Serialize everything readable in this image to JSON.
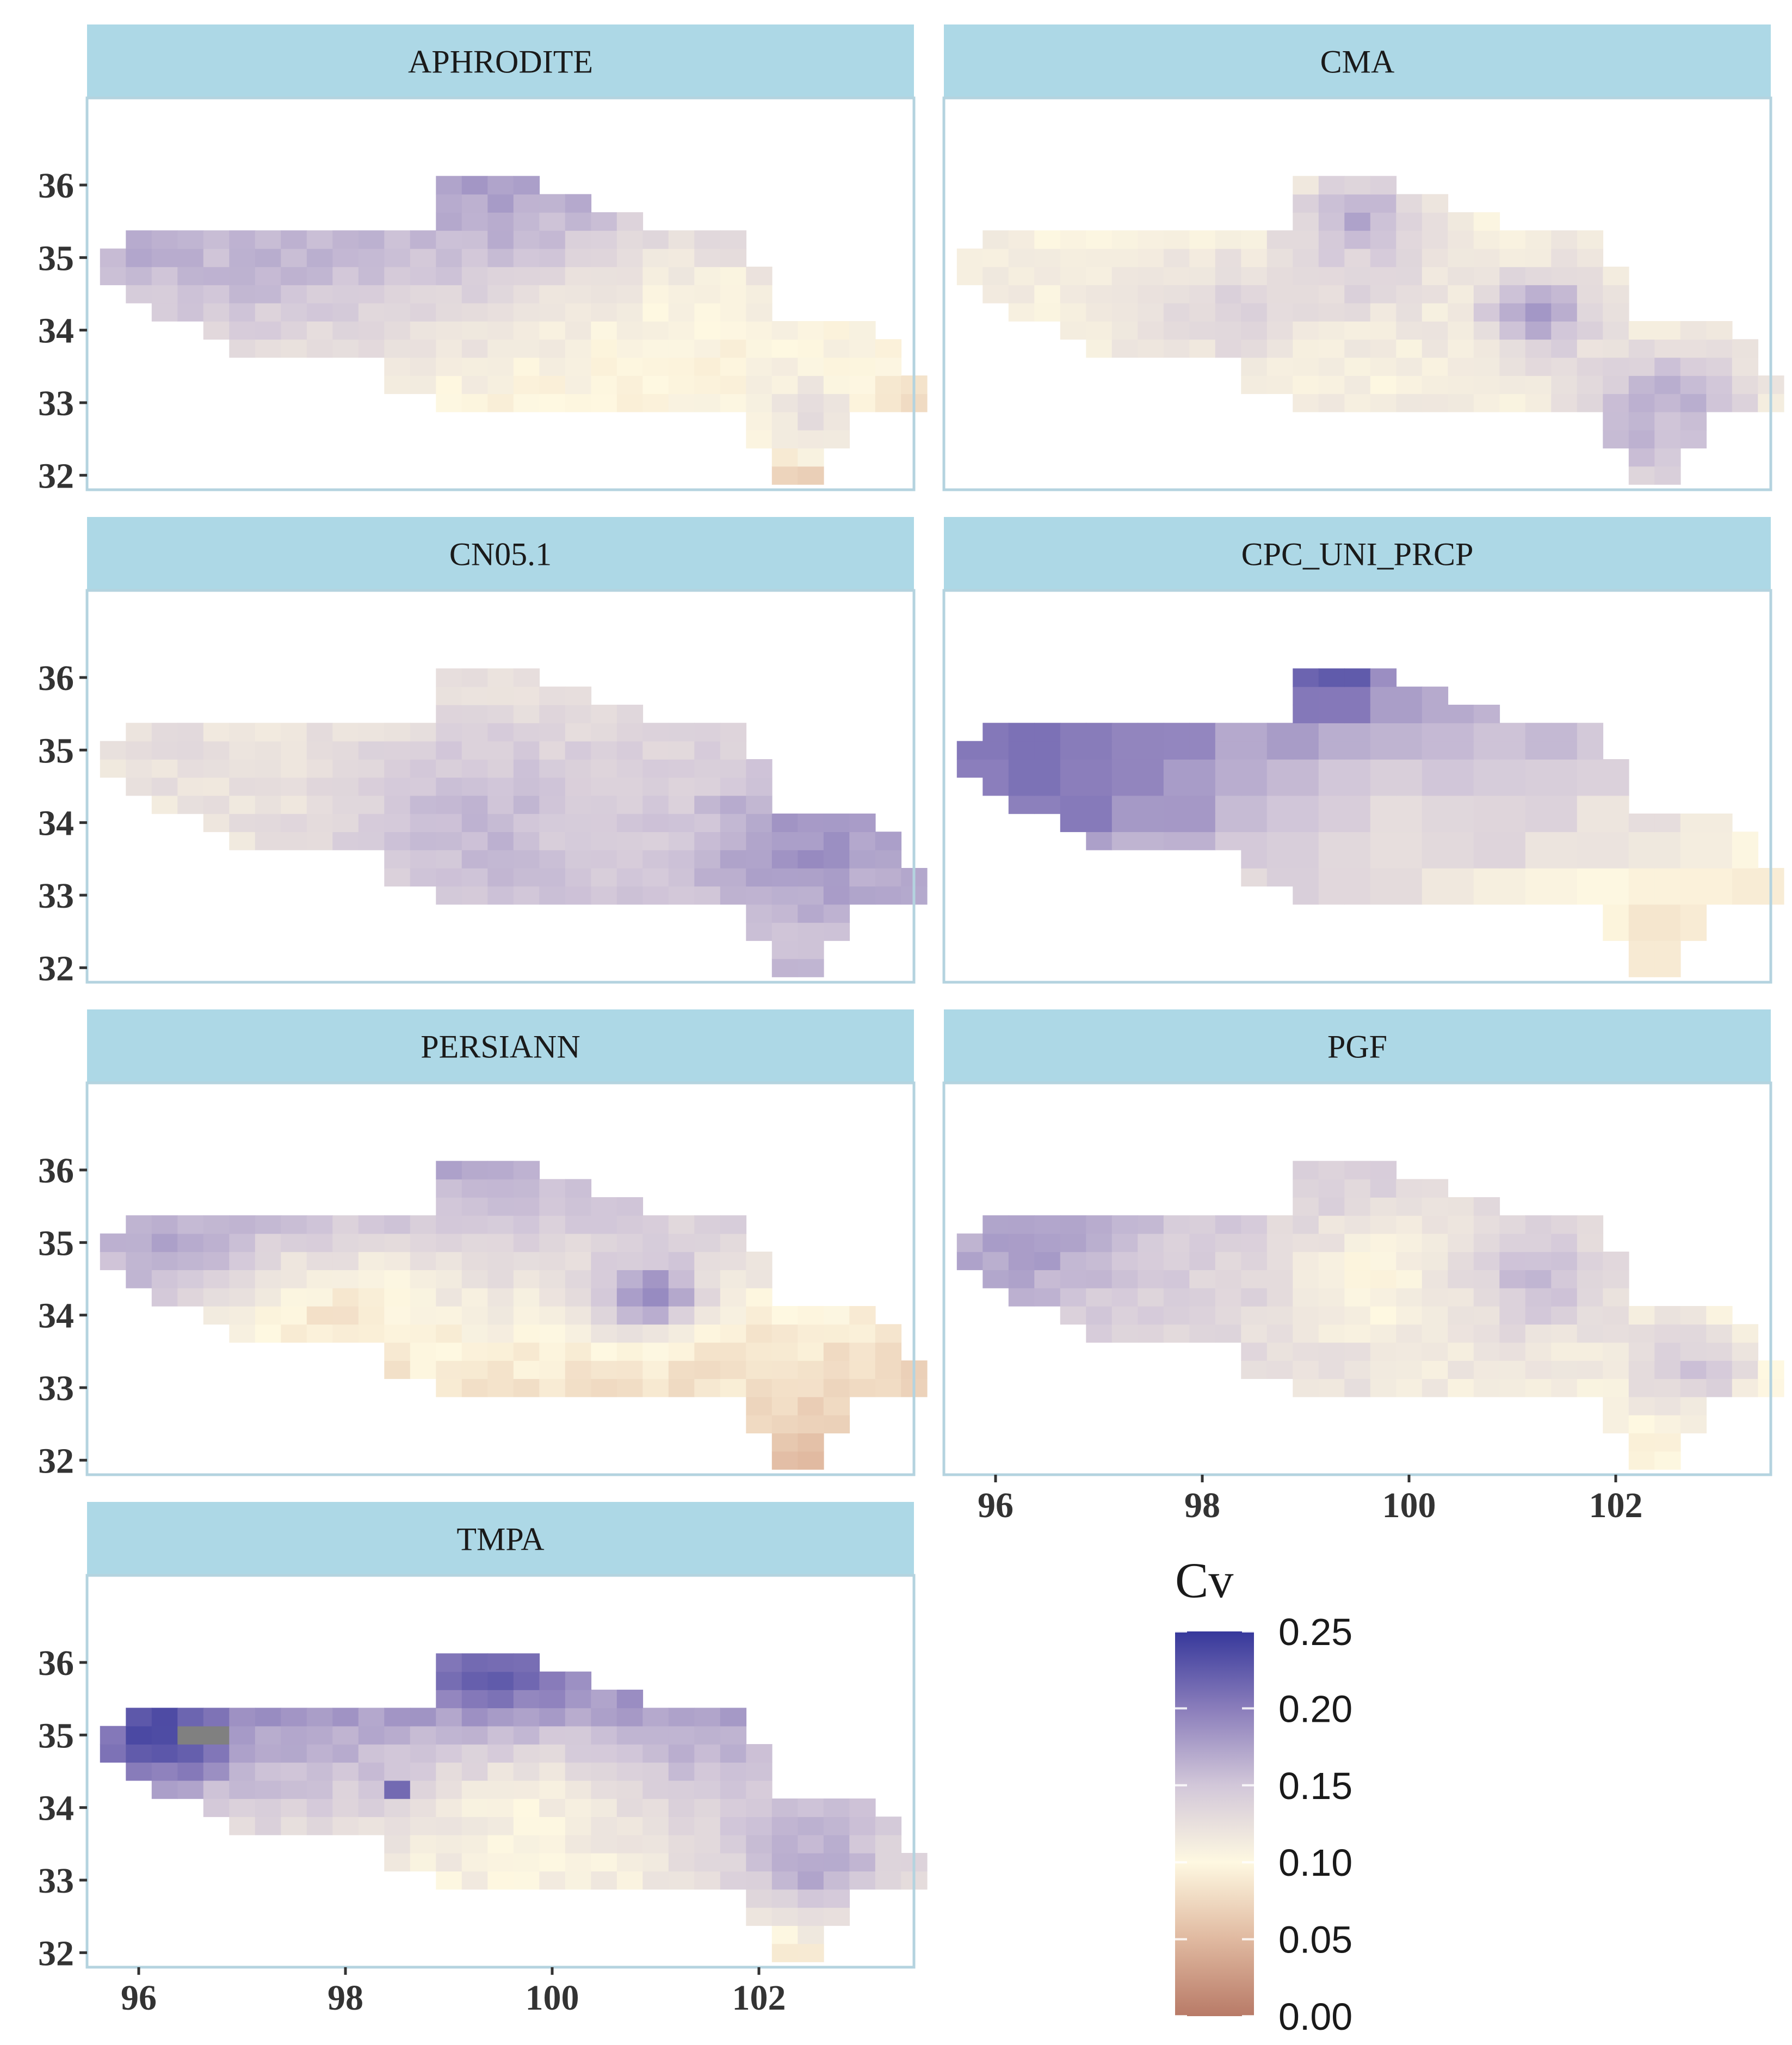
{
  "chart_data": {
    "type": "heatmap",
    "colormap": {
      "low": "#b87a67",
      "mid": "#fef8e1",
      "high": "#36389b",
      "stops": [
        {
          "value": 0.0,
          "color": "#b87a67"
        },
        {
          "value": 0.05,
          "color": "#e0b9a0"
        },
        {
          "value": 0.1,
          "color": "#fef8e1"
        },
        {
          "value": 0.15,
          "color": "#d2c7d9"
        },
        {
          "value": 0.2,
          "color": "#8a7dbb"
        },
        {
          "value": 0.25,
          "color": "#36389b"
        }
      ],
      "na_color": "#808080"
    },
    "x_range": [
      95.5,
      103.5
    ],
    "y_range": [
      31.8,
      37.2
    ],
    "x_ticks": [
      96,
      98,
      100,
      102
    ],
    "y_ticks": [
      32,
      33,
      34,
      35,
      36
    ],
    "x_tick_labels": [
      "96",
      "98",
      "100",
      "102"
    ],
    "y_tick_labels": [
      "32",
      "33",
      "34",
      "35",
      "36"
    ],
    "legend": {
      "title": "Cv",
      "values": [
        0.25,
        0.2,
        0.15,
        0.1,
        0.05,
        0.0
      ],
      "labels": [
        "0.25",
        "0.20",
        "0.15",
        "0.10",
        "0.05",
        "0.00"
      ],
      "range": [
        0.0,
        0.25
      ],
      "placement": "bottom-right"
    },
    "grid_step_deg": 0.25,
    "region_extent": [
      {
        "lat": 36.0,
        "lon_min": 99.0,
        "lon_max": 99.75
      },
      {
        "lat": 35.75,
        "lon_min": 99.0,
        "lon_max": 100.25
      },
      {
        "lat": 35.5,
        "lon_min": 99.0,
        "lon_max": 100.75
      },
      {
        "lat": 35.25,
        "lon_min": 96.0,
        "lon_max": 101.75
      },
      {
        "lat": 35.0,
        "lon_min": 95.75,
        "lon_max": 101.75
      },
      {
        "lat": 34.75,
        "lon_min": 95.75,
        "lon_max": 102.0
      },
      {
        "lat": 34.5,
        "lon_min": 96.0,
        "lon_max": 102.0
      },
      {
        "lat": 34.25,
        "lon_min": 96.25,
        "lon_max": 102.0
      },
      {
        "lat": 34.0,
        "lon_min": 96.75,
        "lon_max": 103.0
      },
      {
        "lat": 33.75,
        "lon_min": 97.0,
        "lon_max": 103.25
      },
      {
        "lat": 33.5,
        "lon_min": 98.5,
        "lon_max": 103.25
      },
      {
        "lat": 33.25,
        "lon_min": 98.5,
        "lon_max": 103.5
      },
      {
        "lat": 33.0,
        "lon_min": 99.0,
        "lon_max": 103.5
      },
      {
        "lat": 32.75,
        "lon_min": 102.0,
        "lon_max": 102.75
      },
      {
        "lat": 32.5,
        "lon_min": 102.0,
        "lon_max": 102.75
      },
      {
        "lat": 32.25,
        "lon_min": 102.25,
        "lon_max": 102.5
      },
      {
        "lat": 32.0,
        "lon_min": 102.25,
        "lon_max": 102.5
      }
    ],
    "panels": [
      {
        "title": "APHRODITE",
        "grid_step_deg": 0.25,
        "base_cv": 0.13,
        "gradient": {
          "lat": 0.024,
          "lon": -0.005
        },
        "anomalies": [
          {
            "lat": 35.75,
            "lon": 99.5,
            "cv": 0.175,
            "radius": 0.5
          },
          {
            "lat": 35.25,
            "lon": 97.25,
            "cv": 0.16,
            "radius": 0.6
          },
          {
            "lat": 33.75,
            "lon": 101.5,
            "cv": 0.1,
            "radius": 1.0
          },
          {
            "lat": 32.75,
            "lon": 102.5,
            "cv": 0.13,
            "radius": 0.4
          }
        ]
      },
      {
        "title": "CMA",
        "grid_step_deg": 0.25,
        "base_cv": 0.11,
        "gradient": {
          "lat": 0.0,
          "lon": 0.0
        },
        "anomalies": [
          {
            "lat": 35.5,
            "lon": 99.5,
            "cv": 0.175,
            "radius": 0.4
          },
          {
            "lat": 34.25,
            "lon": 101.25,
            "cv": 0.175,
            "radius": 0.4
          },
          {
            "lat": 34.25,
            "lon": 98.25,
            "cv": 0.135,
            "radius": 0.5
          },
          {
            "lat": 34.75,
            "lon": 99.5,
            "cv": 0.14,
            "radius": 0.4
          },
          {
            "lat": 33.0,
            "lon": 102.5,
            "cv": 0.165,
            "radius": 0.5
          },
          {
            "lat": 32.5,
            "lon": 102.25,
            "cv": 0.16,
            "radius": 0.5
          }
        ]
      },
      {
        "title": "CN05.1",
        "grid_step_deg": 0.25,
        "base_cv": 0.13,
        "gradient": {
          "lat": -0.006,
          "lon": 0.005
        },
        "anomalies": [
          {
            "lat": 33.75,
            "lon": 102.5,
            "cv": 0.185,
            "radius": 0.7
          },
          {
            "lat": 34.0,
            "lon": 99.25,
            "cv": 0.16,
            "radius": 0.9
          },
          {
            "lat": 35.0,
            "lon": 96.5,
            "cv": 0.125,
            "radius": 0.8
          }
        ]
      },
      {
        "title": "CPC_UNI_PRCP",
        "grid_step_deg": 0.5,
        "base_cv": 0.15,
        "gradient": {
          "lat": 0.02,
          "lon": -0.008
        },
        "anomalies": [
          {
            "lat": 36.0,
            "lon": 99.25,
            "cv": 0.245,
            "radius": 0.3
          },
          {
            "lat": 35.5,
            "lon": 99.25,
            "cv": 0.21,
            "radius": 0.3
          },
          {
            "lat": 34.75,
            "lon": 96.75,
            "cv": 0.205,
            "radius": 0.9
          },
          {
            "lat": 34.0,
            "lon": 99.75,
            "cv": 0.135,
            "radius": 0.7
          }
        ]
      },
      {
        "title": "PERSIANN",
        "grid_step_deg": 0.25,
        "base_cv": 0.12,
        "gradient": {
          "lat": 0.028,
          "lon": -0.004
        },
        "anomalies": [
          {
            "lat": 34.25,
            "lon": 101.0,
            "cv": 0.195,
            "radius": 0.35
          },
          {
            "lat": 33.75,
            "lon": 98.0,
            "cv": 0.085,
            "radius": 0.7
          },
          {
            "lat": 33.25,
            "lon": 102.0,
            "cv": 0.085,
            "radius": 0.6
          },
          {
            "lat": 35.0,
            "lon": 96.25,
            "cv": 0.17,
            "radius": 0.5
          }
        ]
      },
      {
        "title": "PGF",
        "grid_step_deg": 0.25,
        "base_cv": 0.13,
        "gradient": {
          "lat": 0.008,
          "lon": -0.006
        },
        "anomalies": [
          {
            "lat": 35.0,
            "lon": 96.25,
            "cv": 0.18,
            "radius": 0.5
          },
          {
            "lat": 34.5,
            "lon": 99.75,
            "cv": 0.1,
            "radius": 0.6
          },
          {
            "lat": 34.5,
            "lon": 101.25,
            "cv": 0.155,
            "radius": 0.5
          },
          {
            "lat": 33.25,
            "lon": 102.75,
            "cv": 0.15,
            "radius": 0.4
          }
        ]
      },
      {
        "title": "TMPA",
        "grid_step_deg": 0.25,
        "base_cv": 0.15,
        "gradient": {
          "lat": 0.03,
          "lon": 0.0
        },
        "anomalies": [
          {
            "lat": 35.0,
            "lon": 96.25,
            "cv": 0.24,
            "radius": 0.45
          },
          {
            "lat": 35.75,
            "lon": 99.5,
            "cv": 0.225,
            "radius": 0.4
          },
          {
            "lat": 34.25,
            "lon": 98.5,
            "cv": 0.25,
            "radius": 0.1
          },
          {
            "lat": 33.75,
            "lon": 99.75,
            "cv": 0.105,
            "radius": 0.8
          },
          {
            "lat": 33.25,
            "lon": 102.5,
            "cv": 0.17,
            "radius": 0.6
          }
        ],
        "missing_cells": [
          {
            "lat": 35.0,
            "lon": 96.75
          },
          {
            "lat": 35.0,
            "lon": 96.5
          }
        ]
      }
    ]
  }
}
